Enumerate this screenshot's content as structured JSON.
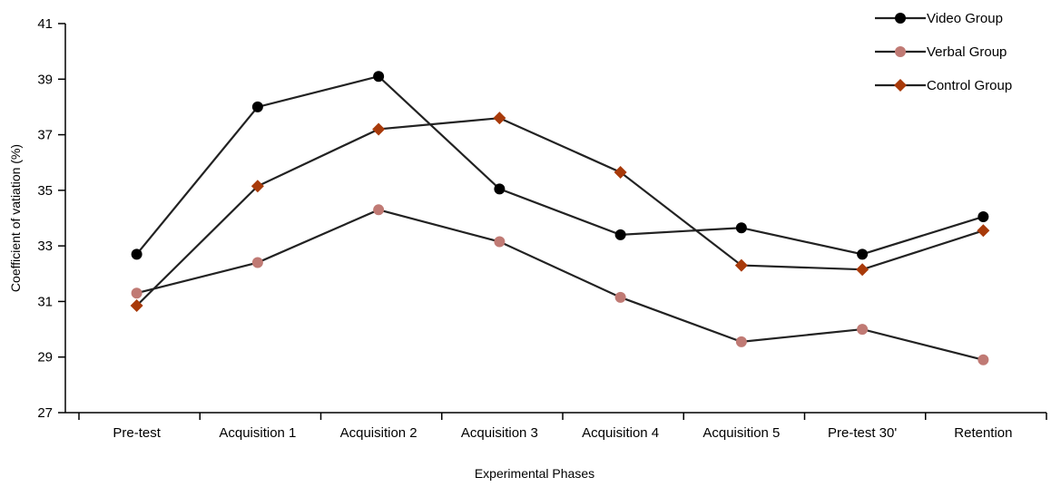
{
  "chart_data": {
    "type": "line",
    "title": "",
    "xlabel": "Experimental Phases",
    "ylabel": "Coefficient of vatiation (%)",
    "ylim": [
      27,
      41
    ],
    "yticks": [
      27,
      29,
      31,
      33,
      35,
      37,
      39,
      41
    ],
    "grid": false,
    "legend_position": "top-right",
    "categories": [
      "Pre-test",
      "Acquisition 1",
      "Acquisition 2",
      "Acquisition 3",
      "Acquisition 4",
      "Acquisition 5",
      "Pre-test 30'",
      "Retention"
    ],
    "series": [
      {
        "name": "Video Group",
        "marker": "circle",
        "color": "#000000",
        "values": [
          32.7,
          38.0,
          39.1,
          35.05,
          33.4,
          33.65,
          32.7,
          34.05
        ]
      },
      {
        "name": "Verbal Group",
        "marker": "circle",
        "color": "#c07a74",
        "values": [
          31.3,
          32.4,
          34.3,
          33.15,
          31.15,
          29.55,
          30.0,
          28.9
        ]
      },
      {
        "name": "Control Group",
        "marker": "diamond",
        "color": "#a83a0a",
        "values": [
          30.85,
          35.15,
          37.2,
          37.6,
          35.65,
          32.3,
          32.15,
          33.55
        ]
      }
    ]
  }
}
